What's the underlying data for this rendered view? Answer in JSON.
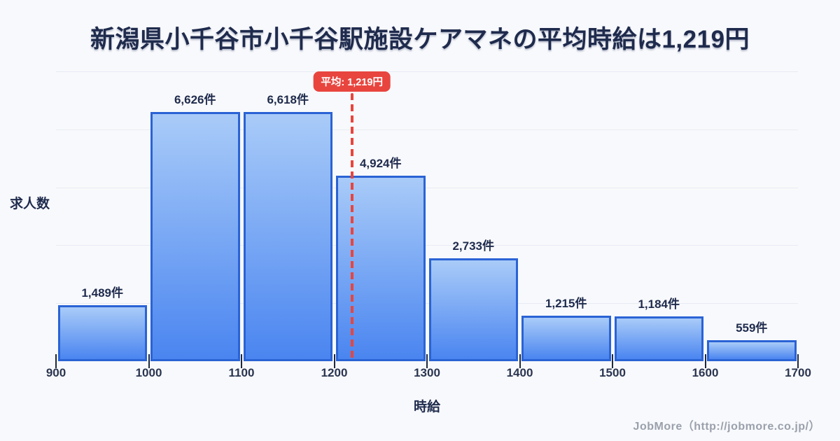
{
  "title": "新潟県小千谷市小千谷駅施設ケアマネの平均時給は1,219円",
  "chart_data": {
    "type": "bar",
    "title": "新潟県小千谷市小千谷駅施設ケアマネの平均時給は1,219円",
    "xlabel": "時給",
    "ylabel": "求人数",
    "bin_edges": [
      900,
      1000,
      1100,
      1200,
      1300,
      1400,
      1500,
      1600,
      1700
    ],
    "x_tick_labels": [
      "900",
      "1000",
      "1100",
      "1200",
      "1300",
      "1400",
      "1500",
      "1600",
      "1700"
    ],
    "values": [
      1489,
      6626,
      6618,
      4924,
      2733,
      1215,
      1184,
      559
    ],
    "bar_labels": [
      "1,489件",
      "6,626件",
      "6,618件",
      "4,924件",
      "2,733件",
      "1,215件",
      "1,184件",
      "559件"
    ],
    "average_line": {
      "value": 1219,
      "label": "平均: 1,219円"
    },
    "xlim": [
      900,
      1700
    ],
    "ylim": [
      0,
      7700
    ],
    "grid": "horizontal-only",
    "legend": "none",
    "colors": {
      "background": "#f8f9fc",
      "bar_fill_top": "#a9cbf8",
      "bar_fill_bottom": "#4a85f0",
      "bar_border": "#2a63d5",
      "average_accent": "#e8453e",
      "title_text": "#1f2b4d",
      "tick_text": "#2a3550",
      "gridline": "#e7ebf3",
      "footer_text": "#9aa1ac"
    }
  },
  "footer": {
    "credit": "JobMore（http://jobmore.co.jp/）"
  }
}
